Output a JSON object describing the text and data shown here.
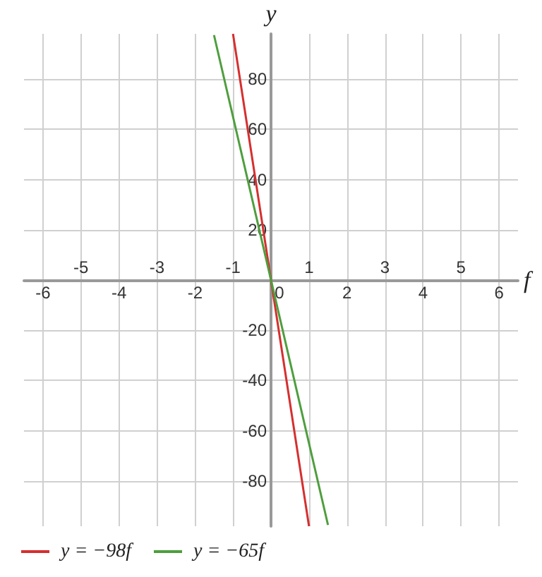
{
  "chart_data": {
    "type": "line",
    "xlabel": "f",
    "ylabel": "y",
    "xlim": [
      -6.5,
      6.5
    ],
    "ylim": [
      -98,
      98
    ],
    "xticks": [
      -6,
      -4,
      -2,
      0,
      2,
      4,
      6
    ],
    "x2lim": [
      -6.5,
      6.5
    ],
    "x2ticks": [
      -5,
      -3,
      -1,
      1,
      3,
      5
    ],
    "yticks": [
      -80,
      -60,
      -40,
      -20,
      20,
      40,
      60,
      80
    ],
    "grid": true,
    "legend": "bottom left",
    "marker": "none",
    "line_style": "solid",
    "series": [
      {
        "name": "y = −98f",
        "color": "#d62f2f",
        "x": [
          -1,
          1
        ],
        "values": [
          98,
          -98
        ]
      },
      {
        "name": "y = −65f",
        "color": "#4e9e3e",
        "x": [
          -1.5,
          1.5
        ],
        "values": [
          97.5,
          -97.5
        ]
      }
    ]
  }
}
